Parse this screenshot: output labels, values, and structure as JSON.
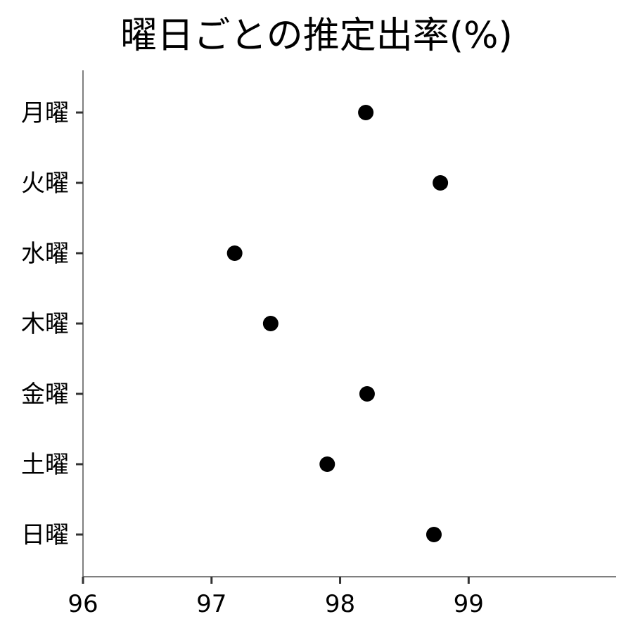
{
  "chart_data": {
    "type": "scatter",
    "title": "曜日ごとの推定出率(%)",
    "xlabel": "",
    "ylabel": "",
    "xlim": [
      96,
      100
    ],
    "x_ticks": [
      "96",
      "97",
      "98",
      "99"
    ],
    "categories": [
      "月曜",
      "火曜",
      "水曜",
      "木曜",
      "金曜",
      "土曜",
      "日曜"
    ],
    "values": [
      98.2,
      98.78,
      97.18,
      97.46,
      98.21,
      97.9,
      98.73
    ],
    "grid": false,
    "legend": "none",
    "point_color": "#000000"
  }
}
